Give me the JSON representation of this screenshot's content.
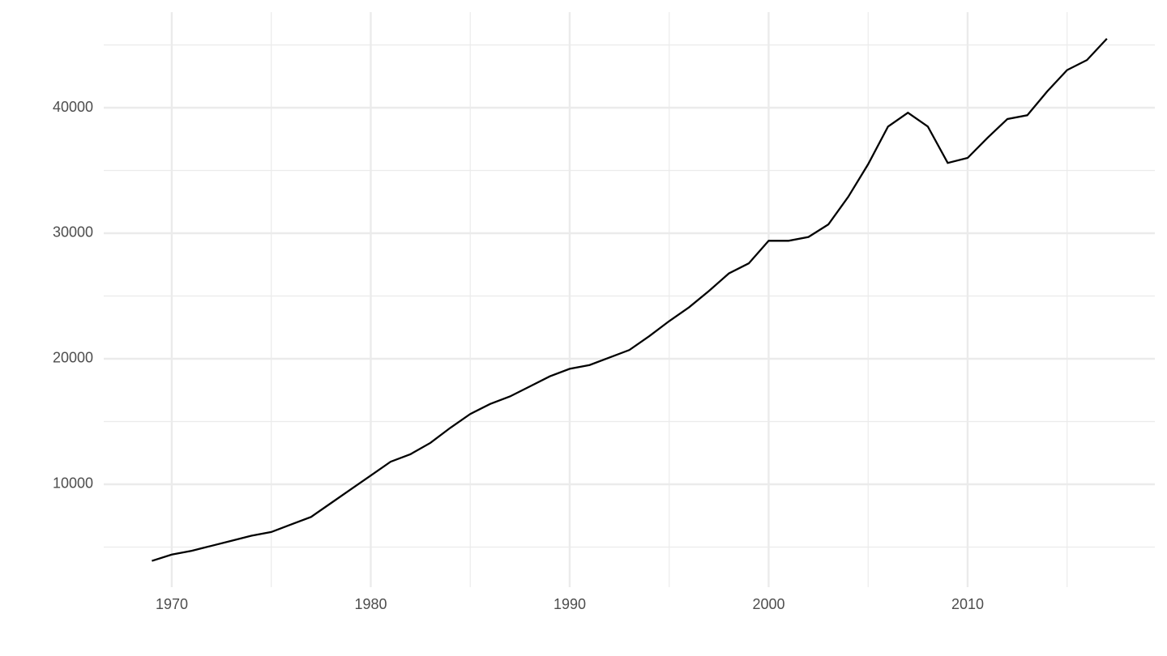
{
  "chart_data": {
    "type": "line",
    "x": [
      1969,
      1970,
      1971,
      1972,
      1973,
      1974,
      1975,
      1976,
      1977,
      1978,
      1979,
      1980,
      1981,
      1982,
      1983,
      1984,
      1985,
      1986,
      1987,
      1988,
      1989,
      1990,
      1991,
      1992,
      1993,
      1994,
      1995,
      1996,
      1997,
      1998,
      1999,
      2000,
      2001,
      2002,
      2003,
      2004,
      2005,
      2006,
      2007,
      2008,
      2009,
      2010,
      2011,
      2012,
      2013,
      2014,
      2015,
      2016,
      2017
    ],
    "series": [
      {
        "color": "#000000",
        "values": [
          3900,
          4400,
          4700,
          5100,
          5500,
          5900,
          6200,
          6800,
          7400,
          8500,
          9600,
          10700,
          11800,
          12400,
          13300,
          14500,
          15600,
          16400,
          17000,
          17800,
          18600,
          19200,
          19500,
          20100,
          20700,
          21800,
          23000,
          24100,
          25400,
          26800,
          27600,
          29400,
          29400,
          29700,
          30700,
          32900,
          35500,
          38500,
          39600,
          38500,
          35600,
          36000,
          37600,
          39100,
          39400,
          41300,
          43000,
          43800,
          45500
        ]
      }
    ],
    "xlim": [
      1966.58,
      2019.41
    ],
    "ylim": [
      1806,
      47613
    ],
    "xticks": [
      1970,
      1980,
      1990,
      2000,
      2010
    ],
    "yticks": [
      10000,
      20000,
      30000,
      40000
    ],
    "xminor": [
      1975,
      1985,
      1995,
      2005,
      2015
    ],
    "yminor": [
      5000,
      15000,
      25000,
      35000,
      45000
    ],
    "grid": true
  }
}
